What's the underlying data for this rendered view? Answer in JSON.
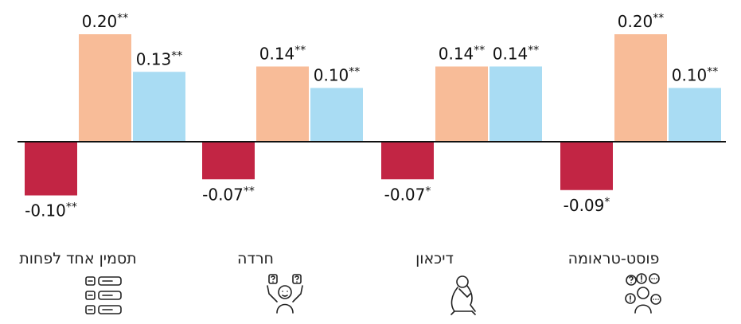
{
  "chart_data": {
    "type": "bar",
    "categories": [
      "פוסט-טראומה",
      "דיכאון",
      "חרדה",
      "תסמין אחד לפחות"
    ],
    "series": [
      {
        "color": "#c22544",
        "values": [
          -0.09,
          -0.07,
          -0.07,
          -0.1
        ],
        "labels": [
          "-0.09*",
          "-0.07*",
          "-0.07**",
          "-0.10**"
        ]
      },
      {
        "color": "#f8bc98",
        "values": [
          0.2,
          0.14,
          0.14,
          0.2
        ],
        "labels": [
          "0.20**",
          "0.14**",
          "0.14**",
          "0.20**"
        ]
      },
      {
        "color": "#a9dcf3",
        "values": [
          0.1,
          0.14,
          0.1,
          0.13
        ],
        "labels": [
          "0.10**",
          "0.14**",
          "0.10**",
          "0.13**"
        ]
      }
    ],
    "category_icons": [
      "people-questions-icon",
      "sad-person-icon",
      "anxious-person-icon",
      "checklist-icon"
    ],
    "ylim": [
      -0.12,
      0.22
    ],
    "grid": false,
    "legend": "none"
  }
}
